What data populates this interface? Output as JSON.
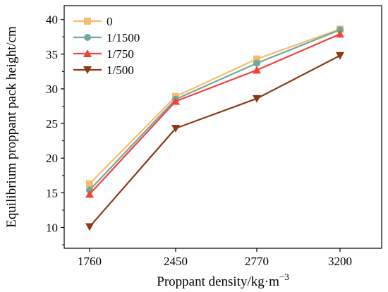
{
  "chart_data": {
    "type": "line",
    "xlabel": "Proppant density/kg·m",
    "xlabel_sup": "−3",
    "ylabel": "Equilibrium proppant pack height/cm",
    "categories": [
      "1760",
      "2450",
      "2770",
      "3200"
    ],
    "ylim": [
      7,
      42
    ],
    "yticks": [
      10,
      15,
      20,
      25,
      30,
      35,
      40
    ],
    "grid": false,
    "legend_position": "top-left",
    "series": [
      {
        "name": "0",
        "color": "#f7bc6c",
        "marker": "square",
        "values": [
          16.3,
          28.9,
          34.3,
          38.6
        ]
      },
      {
        "name": "1/1500",
        "color": "#6fa99d",
        "marker": "circle",
        "values": [
          15.4,
          28.5,
          33.7,
          38.5
        ]
      },
      {
        "name": "1/750",
        "color": "#f2433a",
        "marker": "triangle-up",
        "values": [
          14.8,
          28.2,
          32.7,
          37.9
        ]
      },
      {
        "name": "1/500",
        "color": "#8b3a14",
        "marker": "triangle-down",
        "values": [
          10.1,
          24.3,
          28.6,
          34.8
        ]
      }
    ]
  }
}
